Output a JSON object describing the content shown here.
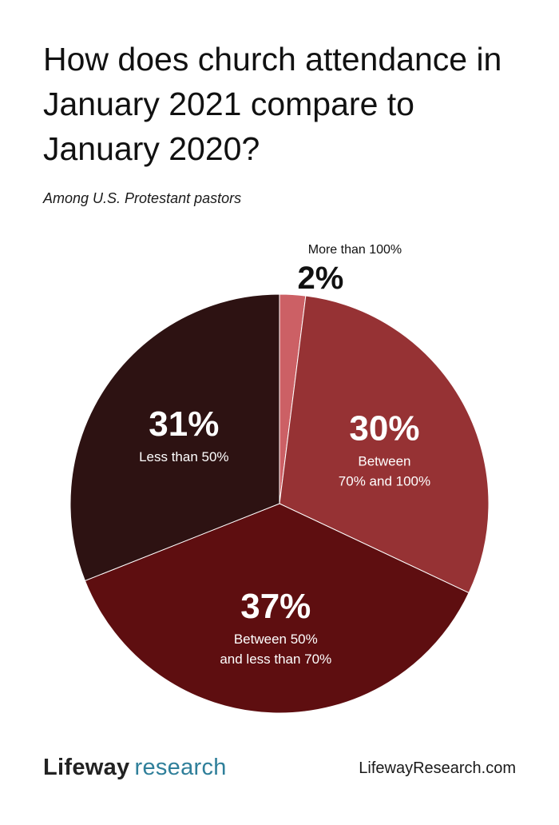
{
  "title": "How does church attendance in January 2021 compare to January 2020?",
  "subtitle": "Among U.S. Protestant pastors",
  "chart_data": {
    "type": "pie",
    "slices": [
      {
        "label": "More than 100%",
        "value": 2,
        "display": "2%",
        "color": "#cc6065",
        "label_color": "#111111",
        "label_position": "outside"
      },
      {
        "label": "Between 70% and 100%",
        "value": 30,
        "display": "30%",
        "color": "#963234",
        "label_color": "#ffffff",
        "label_position": "inside"
      },
      {
        "label": "Between 50% and less than 70%",
        "value": 37,
        "display": "37%",
        "color": "#5e0e10",
        "label_color": "#ffffff",
        "label_position": "inside"
      },
      {
        "label": "Less than 50%",
        "value": 31,
        "display": "31%",
        "color": "#2d1212",
        "label_color": "#ffffff",
        "label_position": "inside"
      }
    ],
    "label_lines": [
      [],
      [
        "Between",
        "70% and 100%"
      ],
      [
        "Between 50%",
        "and less than 70%"
      ],
      [
        "Less than 50%"
      ]
    ]
  },
  "footer": {
    "brand": "Lifeway",
    "brand_suffix": "research",
    "url": "LifewayResearch.com"
  },
  "colors": {
    "brand_suffix": "#2f7f9a",
    "slice_border": "#ffffff"
  }
}
